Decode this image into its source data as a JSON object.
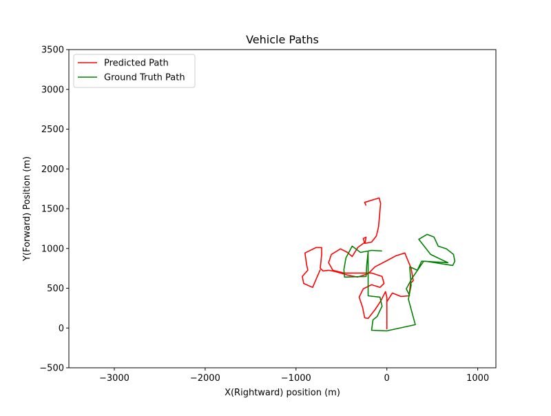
{
  "chart_data": {
    "type": "line",
    "title": "Vehicle Paths",
    "x_label": "X(Rightward) position (m)",
    "y_label": "Y(Forward) Position (m)",
    "xlim": [
      -3500,
      1200
    ],
    "ylim": [
      -500,
      3500
    ],
    "xticks": [
      {
        "value": -3000,
        "label": "−3000"
      },
      {
        "value": -2000,
        "label": "−2000"
      },
      {
        "value": -1000,
        "label": "−1000"
      },
      0,
      1000
    ],
    "yticks": [
      {
        "value": -500,
        "label": "−500"
      },
      0,
      500,
      1000,
      1500,
      2000,
      2500,
      3000,
      3500
    ],
    "legend": "upper left",
    "series": [
      {
        "name": "Predicted Path",
        "color": "#ff0000",
        "x": [
          -230,
          -245,
          -84,
          -69,
          -92,
          -115,
          -168,
          -244,
          -260,
          -229,
          -237,
          -321,
          -382,
          -435,
          -511,
          -611,
          -641,
          -595,
          -473,
          -168,
          -53,
          -31,
          -76,
          -168,
          -260,
          -305,
          -267,
          -244,
          -206,
          -130,
          -69,
          -15,
          0,
          0,
          0,
          61,
          153,
          244,
          260,
          290,
          267,
          229,
          198,
          99,
          -15,
          -130,
          -206,
          -321,
          -435,
          -565,
          -641,
          -702,
          -733,
          -718,
          -718,
          -779,
          -901,
          -885,
          -870,
          -931,
          -916,
          -817,
          -733
        ],
        "y": [
          1540,
          1580,
          1635,
          1566,
          1271,
          1158,
          1080,
          1064,
          1125,
          1142,
          1081,
          1012,
          899,
          951,
          995,
          925,
          821,
          726,
          691,
          691,
          648,
          561,
          510,
          544,
          492,
          388,
          258,
          128,
          120,
          232,
          336,
          457,
          387,
          -10,
          330,
          440,
          397,
          405,
          561,
          596,
          752,
          856,
          943,
          908,
          838,
          770,
          683,
          640,
          665,
          709,
          726,
          717,
          751,
          925,
          1012,
          1012,
          943,
          804,
          726,
          648,
          561,
          510,
          735
        ]
      },
      {
        "name": "Ground Truth Path",
        "color": "#008000",
        "x": [
          -53,
          -168,
          -290,
          -382,
          -450,
          -473,
          -466,
          -229,
          -221,
          -206,
          -206,
          -76,
          -53,
          -107,
          -153,
          -168,
          0,
          313,
          237,
          267,
          252,
          336,
          382,
          427,
          725,
          748,
          733,
          656,
          565,
          519,
          443,
          351,
          481,
          672,
          405,
          275,
          214,
          252
        ],
        "y": [
          968,
          976,
          950,
          1029,
          882,
          735,
          640,
          648,
          795,
          960,
          405,
          388,
          275,
          145,
          102,
          -28,
          -36,
          42,
          362,
          535,
          769,
          726,
          839,
          839,
          787,
          839,
          925,
          995,
          1029,
          1142,
          1177,
          1116,
          925,
          821,
          839,
          622,
          492,
          405
        ]
      }
    ]
  }
}
